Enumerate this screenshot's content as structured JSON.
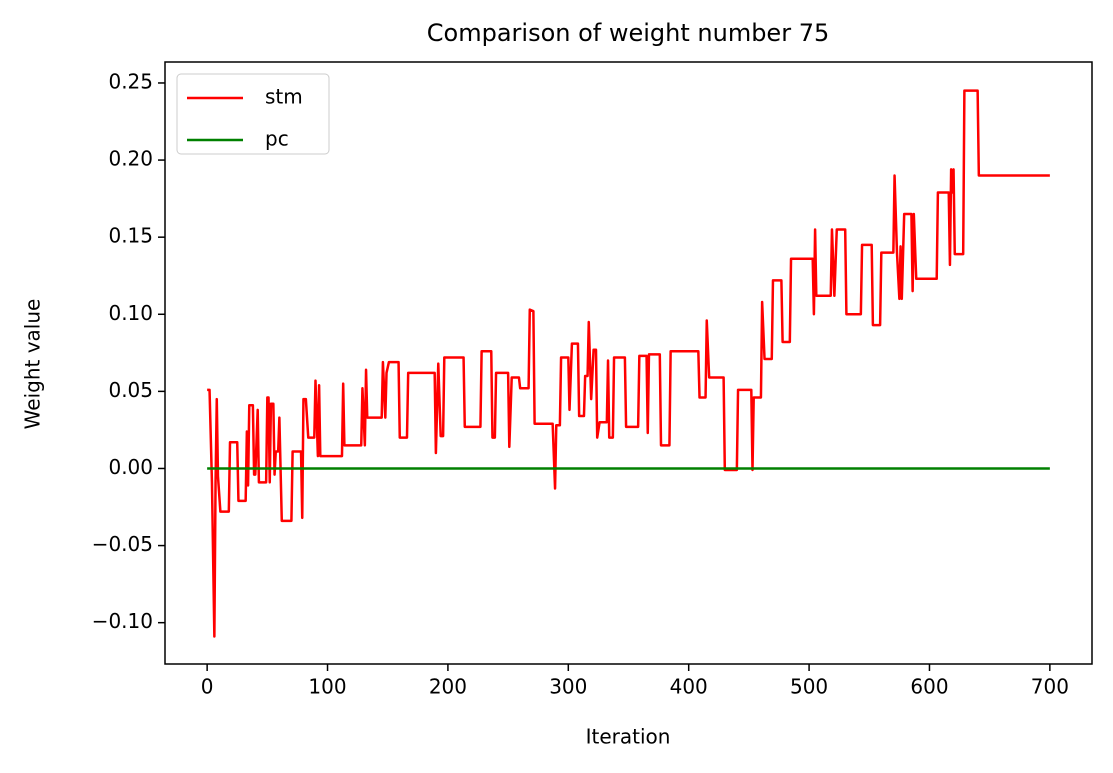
{
  "chart_data": {
    "type": "line",
    "title": "Comparison of weight number 75",
    "x_label": "Iteration",
    "y_label": "Weight value",
    "xlim": [
      -35,
      735
    ],
    "ylim": [
      -0.1268,
      0.2636
    ],
    "xticks": [
      0,
      100,
      200,
      300,
      400,
      500,
      600,
      700
    ],
    "yticks": [
      {
        "value": -0.1,
        "label": "−0.10"
      },
      {
        "value": -0.05,
        "label": "−0.05"
      },
      {
        "value": 0,
        "label": "0.00"
      },
      0.05,
      {
        "value": 0.1,
        "label": "0.10"
      },
      0.15,
      {
        "value": 0.2,
        "label": "0.20"
      },
      0.25
    ],
    "grid": false,
    "legend": "upper left",
    "series": [
      {
        "name": "stm",
        "color": "#ff0000",
        "x": [
          0,
          2,
          4,
          6,
          7,
          8,
          9,
          11,
          18,
          19,
          25,
          26,
          32,
          33,
          34,
          35,
          38,
          39,
          40,
          42,
          43,
          49,
          50,
          51,
          52,
          53,
          55,
          56,
          57,
          59,
          60,
          62,
          70,
          71,
          78,
          79,
          80,
          82,
          84,
          89,
          90,
          92,
          93,
          94,
          112,
          113,
          114,
          128,
          129,
          131,
          132,
          133,
          145,
          146,
          148,
          149,
          151,
          159,
          160,
          166,
          167,
          189,
          190,
          192,
          194,
          196,
          197,
          213,
          214,
          227,
          228,
          236,
          237,
          239,
          240,
          250,
          251,
          253,
          259,
          260,
          267,
          268,
          271,
          272,
          287,
          289,
          290,
          293,
          294,
          300,
          301,
          303,
          308,
          309,
          313,
          314,
          316,
          317,
          319,
          321,
          323,
          324,
          326,
          332,
          333,
          334,
          337,
          338,
          347,
          348,
          358,
          359,
          365,
          366,
          367,
          376,
          377,
          384,
          385,
          408,
          409,
          414,
          415,
          417,
          429,
          430,
          440,
          441,
          452,
          453,
          454,
          460,
          461,
          463,
          469,
          470,
          477,
          478,
          484,
          485,
          503,
          504,
          505,
          506,
          518,
          519,
          521,
          523,
          530,
          531,
          543,
          544,
          552,
          553,
          559,
          560,
          570,
          571,
          573,
          575,
          576,
          577,
          579,
          585,
          586,
          587,
          589,
          606,
          607,
          616,
          617,
          618,
          619,
          620,
          621,
          628,
          629,
          640,
          641,
          700
        ],
        "values": [
          0.051,
          0.051,
          -0.009,
          -0.109,
          -0.009,
          0.045,
          -0.005,
          -0.028,
          -0.028,
          0.017,
          0.017,
          -0.021,
          -0.021,
          0.024,
          -0.011,
          0.041,
          0.041,
          -0.004,
          -0.004,
          0.038,
          -0.009,
          -0.009,
          0.046,
          0.046,
          -0.009,
          0.042,
          0.042,
          -0.004,
          0.011,
          0.011,
          0.033,
          -0.034,
          -0.034,
          0.011,
          0.011,
          -0.032,
          0.045,
          0.045,
          0.02,
          0.02,
          0.057,
          0.008,
          0.054,
          0.008,
          0.008,
          0.055,
          0.015,
          0.015,
          0.052,
          0.015,
          0.064,
          0.033,
          0.033,
          0.069,
          0.033,
          0.062,
          0.069,
          0.069,
          0.02,
          0.02,
          0.062,
          0.062,
          0.01,
          0.068,
          0.021,
          0.021,
          0.072,
          0.072,
          0.027,
          0.027,
          0.076,
          0.076,
          0.02,
          0.02,
          0.062,
          0.062,
          0.014,
          0.059,
          0.059,
          0.052,
          0.052,
          0.103,
          0.102,
          0.029,
          0.029,
          -0.013,
          0.028,
          0.028,
          0.072,
          0.072,
          0.038,
          0.081,
          0.081,
          0.034,
          0.034,
          0.06,
          0.06,
          0.095,
          0.045,
          0.077,
          0.077,
          0.02,
          0.03,
          0.03,
          0.07,
          0.02,
          0.02,
          0.072,
          0.072,
          0.027,
          0.027,
          0.073,
          0.073,
          0.023,
          0.074,
          0.074,
          0.015,
          0.015,
          0.076,
          0.076,
          0.046,
          0.046,
          0.096,
          0.059,
          0.059,
          -0.001,
          -0.001,
          0.051,
          0.051,
          -0.001,
          0.046,
          0.046,
          0.108,
          0.071,
          0.071,
          0.122,
          0.122,
          0.082,
          0.082,
          0.136,
          0.136,
          0.1,
          0.155,
          0.112,
          0.112,
          0.155,
          0.112,
          0.155,
          0.155,
          0.1,
          0.1,
          0.145,
          0.145,
          0.093,
          0.093,
          0.14,
          0.14,
          0.19,
          0.14,
          0.11,
          0.144,
          0.11,
          0.165,
          0.165,
          0.115,
          0.165,
          0.123,
          0.123,
          0.179,
          0.179,
          0.132,
          0.194,
          0.179,
          0.194,
          0.139,
          0.139,
          0.245,
          0.245,
          0.19,
          0.19
        ]
      },
      {
        "name": "pc",
        "color": "#008000",
        "x": [
          0,
          700
        ],
        "values": [
          0,
          0
        ]
      }
    ]
  }
}
